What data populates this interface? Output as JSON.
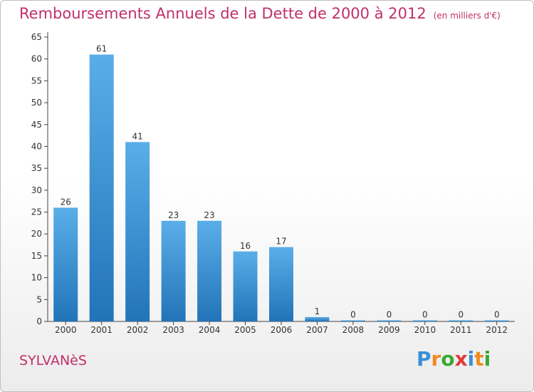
{
  "header": {
    "title": "Remboursements Annuels de la Dette de 2000 à 2012",
    "unit": "(en milliers d'€)"
  },
  "footer": {
    "city": "SYLVANèS",
    "logo": {
      "letters": [
        "P",
        "r",
        "o",
        "x",
        "i",
        "t",
        "i"
      ],
      "colors": [
        "#3a8fd8",
        "#f08a1e",
        "#3aa832",
        "#e03a3a",
        "#3a8fd8",
        "#f08a1e",
        "#3aa832"
      ]
    }
  },
  "chart_data": {
    "type": "bar",
    "title": "Remboursements Annuels de la Dette de 2000 à 2012",
    "categories": [
      "2000",
      "2001",
      "2002",
      "2003",
      "2004",
      "2005",
      "2006",
      "2007",
      "2008",
      "2009",
      "2010",
      "2011",
      "2012"
    ],
    "values": [
      26,
      61,
      41,
      23,
      23,
      16,
      17,
      1,
      0,
      0,
      0,
      0,
      0
    ],
    "value_labels": [
      "26",
      "61",
      "41",
      "23",
      "23",
      "16",
      "17",
      "1",
      "0",
      "0",
      "0",
      "0",
      "0"
    ],
    "ylim": [
      0,
      65
    ],
    "yticks": [
      0,
      5,
      10,
      15,
      20,
      25,
      30,
      35,
      40,
      45,
      50,
      55,
      60,
      65
    ],
    "grid": false,
    "colors": {
      "bar_light": "#5aaee8",
      "bar_dark": "#2274b8",
      "axis": "#444444",
      "text": "#333333"
    }
  }
}
